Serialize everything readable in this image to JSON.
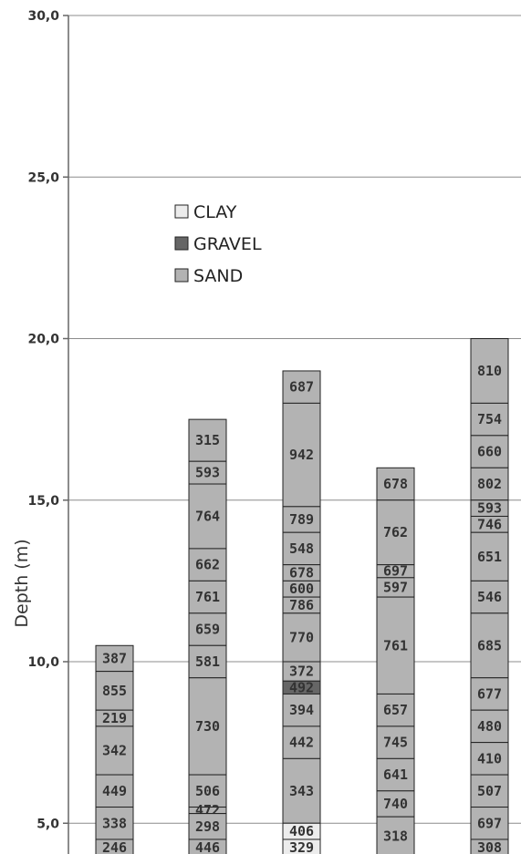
{
  "chart_data": {
    "type": "bar",
    "stacked": true,
    "ylabel": "Depth (m)",
    "ylim": [
      4.0,
      30.0
    ],
    "yticks": [
      "5,0",
      "10,0",
      "15,0",
      "20,0",
      "25,0",
      "30,0"
    ],
    "ytick_values": [
      5,
      10,
      15,
      20,
      25,
      30
    ],
    "grid": "horizontal",
    "legend": [
      {
        "name": "CLAY",
        "color": "#ececec"
      },
      {
        "name": "GRAVEL",
        "color": "#666666"
      },
      {
        "name": "SAND",
        "color": "#b3b3b3"
      }
    ],
    "columns": [
      {
        "top": 10.5,
        "segments": [
          {
            "label": "387",
            "type": "SAND",
            "from": 10.5,
            "to": 9.7
          },
          {
            "label": "855",
            "type": "SAND",
            "from": 9.7,
            "to": 8.5
          },
          {
            "label": "219",
            "type": "SAND",
            "from": 8.5,
            "to": 8.0
          },
          {
            "label": "342",
            "type": "SAND",
            "from": 8.0,
            "to": 6.5
          },
          {
            "label": "449",
            "type": "SAND",
            "from": 6.5,
            "to": 5.5
          },
          {
            "label": "338",
            "type": "SAND",
            "from": 5.5,
            "to": 4.5
          },
          {
            "label": "246",
            "type": "SAND",
            "from": 4.5,
            "to": 4.0
          }
        ]
      },
      {
        "top": 17.5,
        "segments": [
          {
            "label": "315",
            "type": "SAND",
            "from": 17.5,
            "to": 16.2
          },
          {
            "label": "593",
            "type": "SAND",
            "from": 16.2,
            "to": 15.5
          },
          {
            "label": "764",
            "type": "SAND",
            "from": 15.5,
            "to": 13.5
          },
          {
            "label": "662",
            "type": "SAND",
            "from": 13.5,
            "to": 12.5
          },
          {
            "label": "761",
            "type": "SAND",
            "from": 12.5,
            "to": 11.5
          },
          {
            "label": "659",
            "type": "SAND",
            "from": 11.5,
            "to": 10.5
          },
          {
            "label": "581",
            "type": "SAND",
            "from": 10.5,
            "to": 9.5
          },
          {
            "label": "730",
            "type": "SAND",
            "from": 9.5,
            "to": 6.5
          },
          {
            "label": "506",
            "type": "SAND",
            "from": 6.5,
            "to": 5.5
          },
          {
            "label": "472",
            "type": "SAND",
            "from": 5.5,
            "to": 5.3
          },
          {
            "label": "298",
            "type": "SAND",
            "from": 5.3,
            "to": 4.5
          },
          {
            "label": "446",
            "type": "SAND",
            "from": 4.5,
            "to": 4.0
          }
        ]
      },
      {
        "top": 19.0,
        "segments": [
          {
            "label": "687",
            "type": "SAND",
            "from": 19.0,
            "to": 18.0
          },
          {
            "label": "942",
            "type": "SAND",
            "from": 18.0,
            "to": 14.8
          },
          {
            "label": "789",
            "type": "SAND",
            "from": 14.8,
            "to": 14.0
          },
          {
            "label": "548",
            "type": "SAND",
            "from": 14.0,
            "to": 13.0
          },
          {
            "label": "678",
            "type": "SAND",
            "from": 13.0,
            "to": 12.5
          },
          {
            "label": "600",
            "type": "SAND",
            "from": 12.5,
            "to": 12.0
          },
          {
            "label": "786",
            "type": "SAND",
            "from": 12.0,
            "to": 11.5
          },
          {
            "label": "770",
            "type": "SAND",
            "from": 11.5,
            "to": 10.0
          },
          {
            "label": "372",
            "type": "SAND",
            "from": 10.0,
            "to": 9.4
          },
          {
            "label": "492",
            "type": "GRAVEL",
            "from": 9.4,
            "to": 9.0
          },
          {
            "label": "394",
            "type": "SAND",
            "from": 9.0,
            "to": 8.0
          },
          {
            "label": "442",
            "type": "SAND",
            "from": 8.0,
            "to": 7.0
          },
          {
            "label": "343",
            "type": "SAND",
            "from": 7.0,
            "to": 5.0
          },
          {
            "label": "406",
            "type": "CLAY",
            "from": 5.0,
            "to": 4.5
          },
          {
            "label": "329",
            "type": "CLAY",
            "from": 4.5,
            "to": 4.0
          }
        ]
      },
      {
        "top": 16.0,
        "segments": [
          {
            "label": "678",
            "type": "SAND",
            "from": 16.0,
            "to": 15.0
          },
          {
            "label": "762",
            "type": "SAND",
            "from": 15.0,
            "to": 13.0
          },
          {
            "label": "697",
            "type": "SAND",
            "from": 13.0,
            "to": 12.6
          },
          {
            "label": "597",
            "type": "SAND",
            "from": 12.6,
            "to": 12.0
          },
          {
            "label": "761",
            "type": "SAND",
            "from": 12.0,
            "to": 9.0
          },
          {
            "label": "657",
            "type": "SAND",
            "from": 9.0,
            "to": 8.0
          },
          {
            "label": "745",
            "type": "SAND",
            "from": 8.0,
            "to": 7.0
          },
          {
            "label": "641",
            "type": "SAND",
            "from": 7.0,
            "to": 6.0
          },
          {
            "label": "740",
            "type": "SAND",
            "from": 6.0,
            "to": 5.2
          },
          {
            "label": "318",
            "type": "SAND",
            "from": 5.2,
            "to": 4.0
          }
        ]
      },
      {
        "top": 20.0,
        "segments": [
          {
            "label": "810",
            "type": "SAND",
            "from": 20.0,
            "to": 18.0
          },
          {
            "label": "754",
            "type": "SAND",
            "from": 18.0,
            "to": 17.0
          },
          {
            "label": "660",
            "type": "SAND",
            "from": 17.0,
            "to": 16.0
          },
          {
            "label": "802",
            "type": "SAND",
            "from": 16.0,
            "to": 15.0
          },
          {
            "label": "593",
            "type": "SAND",
            "from": 15.0,
            "to": 14.5
          },
          {
            "label": "746",
            "type": "SAND",
            "from": 14.5,
            "to": 14.0
          },
          {
            "label": "651",
            "type": "SAND",
            "from": 14.0,
            "to": 12.5
          },
          {
            "label": "546",
            "type": "SAND",
            "from": 12.5,
            "to": 11.5
          },
          {
            "label": "685",
            "type": "SAND",
            "from": 11.5,
            "to": 9.5
          },
          {
            "label": "677",
            "type": "SAND",
            "from": 9.5,
            "to": 8.5
          },
          {
            "label": "480",
            "type": "SAND",
            "from": 8.5,
            "to": 7.5
          },
          {
            "label": "410",
            "type": "SAND",
            "from": 7.5,
            "to": 6.5
          },
          {
            "label": "507",
            "type": "SAND",
            "from": 6.5,
            "to": 5.5
          },
          {
            "label": "697",
            "type": "SAND",
            "from": 5.5,
            "to": 4.5
          },
          {
            "label": "308",
            "type": "SAND",
            "from": 4.5,
            "to": 4.0
          }
        ]
      }
    ]
  }
}
